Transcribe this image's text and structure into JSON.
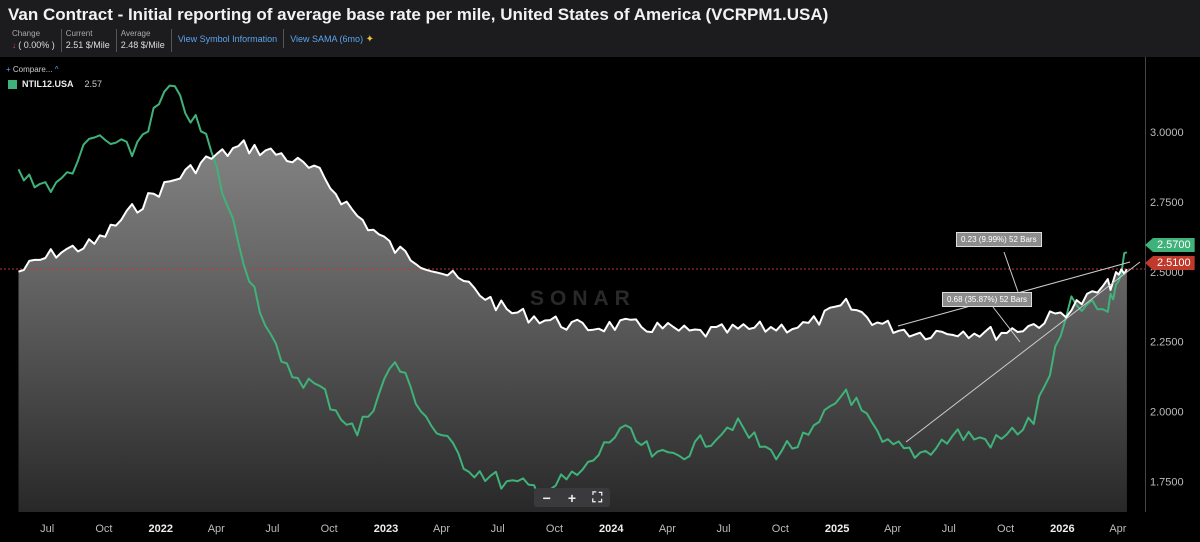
{
  "header": {
    "title": "Van Contract - Initial reporting of average base rate per mile, United States of America (VCRPM1.USA)",
    "stats": [
      {
        "label": "Change",
        "value": "( 0.00% )"
      },
      {
        "label": "Current",
        "value": "2.51 $/Mile"
      },
      {
        "label": "Average",
        "value": "2.48 $/Mile"
      }
    ],
    "links": [
      "View Symbol Information",
      "View SAMA (6mo)"
    ],
    "change_arrow_icon": "down-arrow-icon",
    "sama_icon": "sparkle-icon"
  },
  "compare": {
    "label": "Compare...",
    "plus": "+",
    "caret": "^"
  },
  "legend": {
    "name": "NTIL12.USA",
    "value": "2.57",
    "color": "#3fb27a"
  },
  "watermark": "SONAR",
  "zoom": {
    "minus": "−",
    "plus": "+",
    "fit": "⛶"
  },
  "annotations": [
    {
      "text": "0.23 (9.99%) 52 Bars"
    },
    {
      "text": "0.68 (35.87%) 52 Bars"
    }
  ],
  "tags": {
    "green": "2.5700",
    "red": "2.5100"
  },
  "colors": {
    "van": "#ffffff",
    "ntil": "#3fb27a",
    "current": "#c0392b"
  },
  "chart_data": {
    "type": "line",
    "title": "Van Contract - Initial reporting of average base rate per mile, United States of America (VCRPM1.USA)",
    "x_ticks": [
      "Jul",
      "Oct",
      "2022",
      "Apr",
      "Jul",
      "Oct",
      "2023",
      "Apr",
      "Jul",
      "Oct",
      "2024",
      "Apr",
      "Jul",
      "Oct",
      "2025",
      "Apr",
      "Jul",
      "Oct",
      "2026",
      "Apr"
    ],
    "y_ticks": [
      "3.0000",
      "2.7500",
      "2.5000",
      "2.2500",
      "2.0000",
      "1.7500"
    ],
    "ylim": [
      1.64,
      3.23
    ],
    "current_line": 2.51,
    "grid": false,
    "series": [
      {
        "name": "VCRPM1.USA",
        "color": "#ffffff",
        "fill": "area",
        "x": [
          "2021-05",
          "2021-07",
          "2021-09",
          "2021-11",
          "2022-01",
          "2022-03",
          "2022-05",
          "2022-07",
          "2022-09",
          "2022-11",
          "2023-01",
          "2023-03",
          "2023-05",
          "2023-07",
          "2023-09",
          "2023-11",
          "2024-01",
          "2024-03",
          "2024-05",
          "2024-07",
          "2024-09",
          "2024-11",
          "2025-01",
          "2025-03",
          "2025-05",
          "2025-07",
          "2025-09",
          "2025-11",
          "2026-01",
          "2026-03",
          "2026-04"
        ],
        "values": [
          2.5,
          2.57,
          2.6,
          2.72,
          2.82,
          2.9,
          2.95,
          2.92,
          2.85,
          2.7,
          2.58,
          2.52,
          2.45,
          2.36,
          2.33,
          2.3,
          2.31,
          2.3,
          2.28,
          2.29,
          2.3,
          2.31,
          2.38,
          2.31,
          2.28,
          2.29,
          2.28,
          2.31,
          2.37,
          2.45,
          2.51
        ]
      },
      {
        "name": "NTIL12.USA",
        "color": "#3fb27a",
        "x": [
          "2021-05",
          "2021-07",
          "2021-09",
          "2021-11",
          "2022-01",
          "2022-03",
          "2022-05",
          "2022-07",
          "2022-09",
          "2022-11",
          "2023-01",
          "2023-03",
          "2023-05",
          "2023-07",
          "2023-09",
          "2023-11",
          "2024-01",
          "2024-03",
          "2024-05",
          "2024-07",
          "2024-09",
          "2024-11",
          "2025-01",
          "2025-03",
          "2025-05",
          "2025-07",
          "2025-09",
          "2025-11",
          "2026-01",
          "2026-03",
          "2026-04"
        ],
        "values": [
          2.85,
          2.8,
          2.98,
          2.93,
          3.16,
          2.98,
          2.55,
          2.16,
          2.08,
          1.92,
          2.18,
          1.95,
          1.8,
          1.74,
          1.72,
          1.78,
          1.94,
          1.83,
          1.87,
          1.96,
          1.85,
          1.9,
          2.08,
          1.88,
          1.85,
          1.92,
          1.89,
          1.97,
          2.38,
          2.36,
          2.57
        ]
      }
    ]
  }
}
